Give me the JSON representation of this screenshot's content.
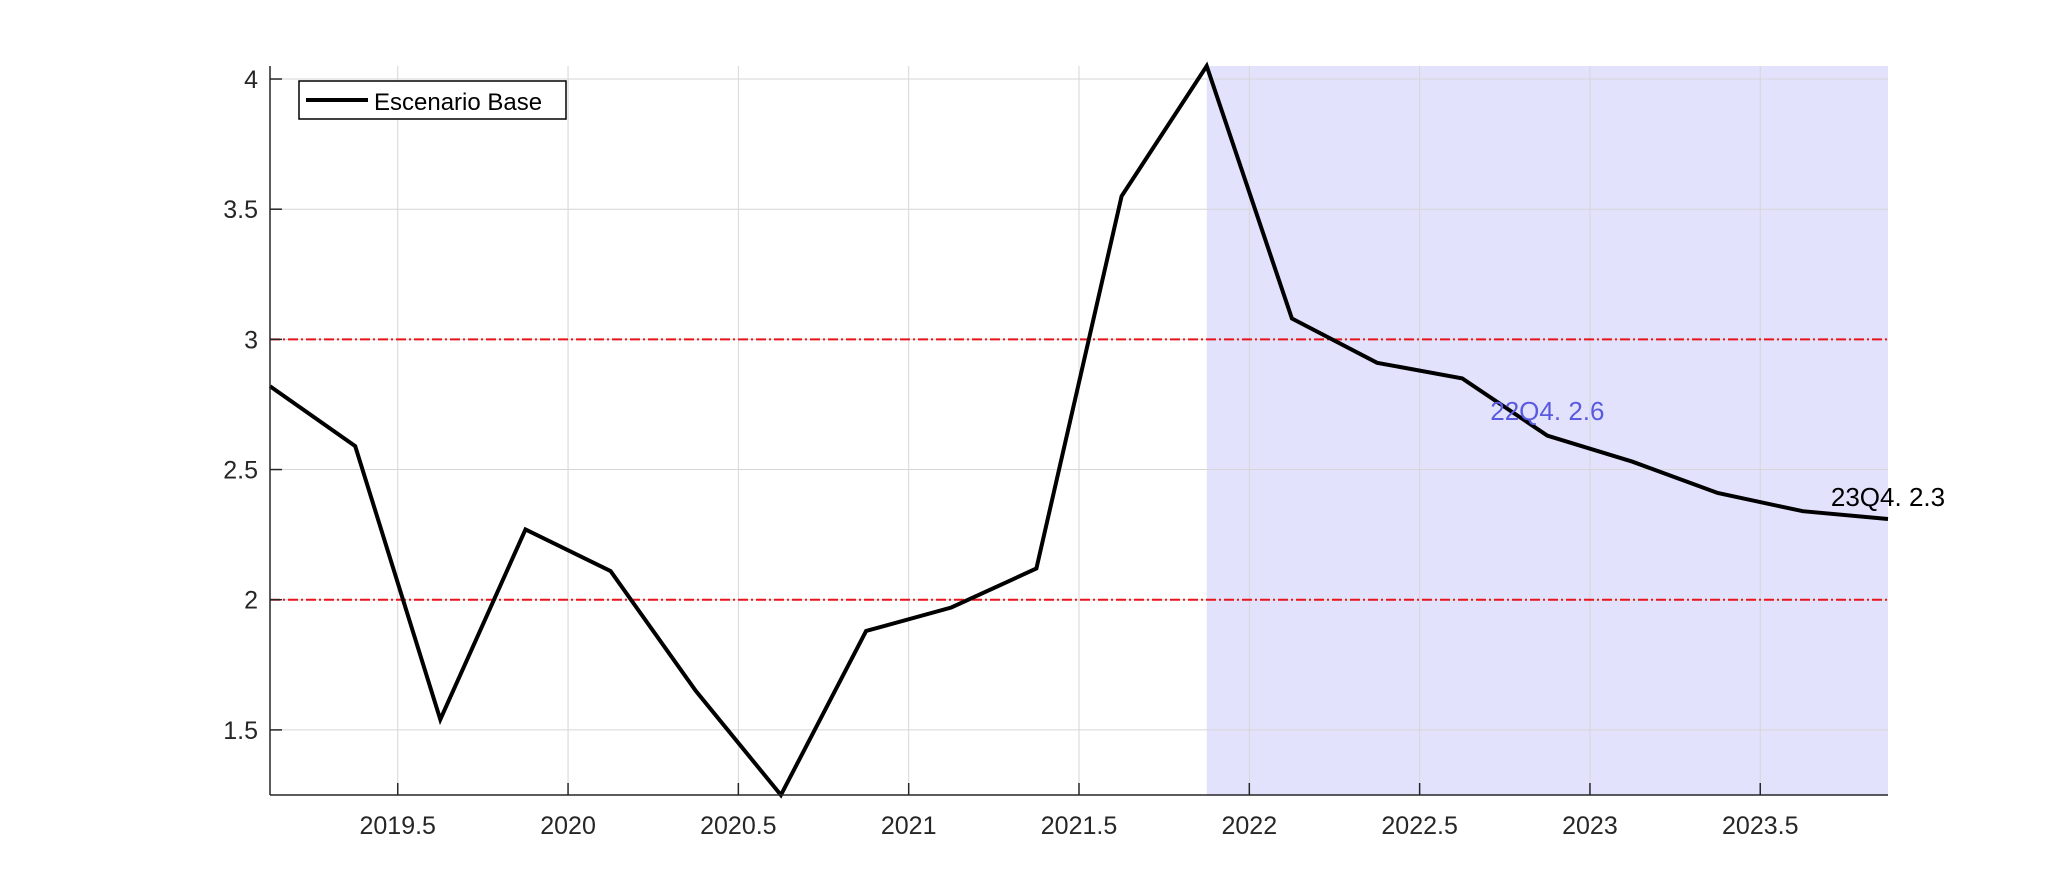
{
  "chart_data": {
    "type": "line",
    "title": "",
    "xlabel": "",
    "ylabel": "",
    "xlim": [
      2019.125,
      2023.875
    ],
    "ylim": [
      1.25,
      4.05
    ],
    "xticks": [
      2019.5,
      2020,
      2020.5,
      2021,
      2021.5,
      2022,
      2022.5,
      2023,
      2023.5
    ],
    "xtick_labels": [
      "2019.5",
      "2020",
      "2020.5",
      "2021",
      "2021.5",
      "2022",
      "2022.5",
      "2023",
      "2023.5"
    ],
    "yticks": [
      1.5,
      2,
      2.5,
      3,
      3.5,
      4
    ],
    "ytick_labels": [
      "1.5",
      "2",
      "2.5",
      "3",
      "3.5",
      "4"
    ],
    "grid": true,
    "legend": {
      "location": "top-left",
      "entries": [
        "Escenario Base"
      ]
    },
    "series": [
      {
        "name": "Escenario Base",
        "color": "#000000",
        "x": [
          2019.125,
          2019.375,
          2019.625,
          2019.875,
          2020.125,
          2020.375,
          2020.625,
          2020.875,
          2021.125,
          2021.375,
          2021.625,
          2021.875,
          2022.125,
          2022.375,
          2022.625,
          2022.875,
          2023.125,
          2023.375,
          2023.625,
          2023.875
        ],
        "y": [
          2.82,
          2.59,
          1.54,
          2.27,
          2.11,
          1.65,
          1.25,
          1.88,
          1.97,
          2.12,
          3.55,
          4.05,
          3.08,
          2.91,
          2.85,
          2.63,
          2.53,
          2.41,
          2.34,
          2.31
        ]
      }
    ],
    "reference_lines": [
      {
        "y": 3,
        "color": "#e8141b",
        "style": "dash-dot"
      },
      {
        "y": 2,
        "color": "#e8141b",
        "style": "dash-dot"
      }
    ],
    "shaded_region": {
      "x_start": 2021.875,
      "x_end": 2023.875,
      "color": "#e2e2fd"
    },
    "annotations": [
      {
        "text": "22Q4. 2.6",
        "x": 2022.875,
        "y": 2.69,
        "color": "#5a5ae0"
      },
      {
        "text": "23Q4. 2.3",
        "x": 2023.875,
        "y": 2.36,
        "color": "#000000"
      }
    ]
  }
}
